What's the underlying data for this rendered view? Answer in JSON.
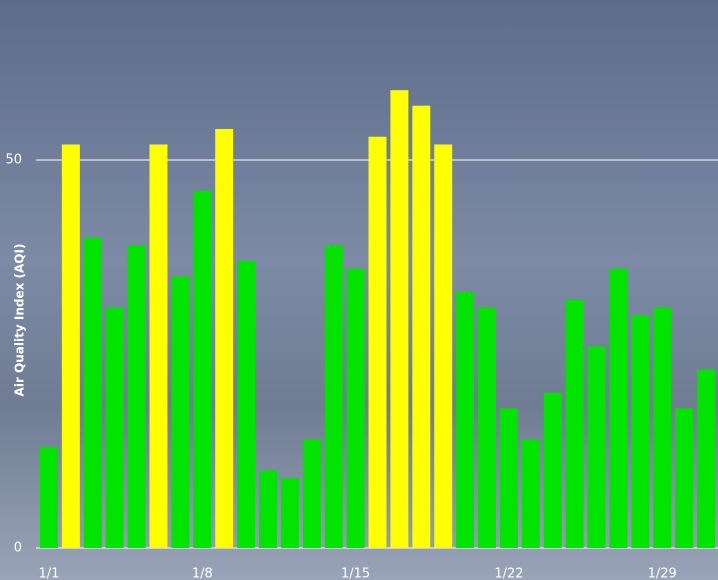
{
  "chart_data": {
    "type": "bar",
    "y_label": "Air Quality Index (AQI)",
    "categories": [
      "1/1",
      null,
      null,
      null,
      null,
      null,
      null,
      "1/8",
      null,
      null,
      null,
      null,
      null,
      null,
      "1/15",
      null,
      null,
      null,
      null,
      null,
      null,
      "1/22",
      null,
      null,
      null,
      null,
      null,
      null,
      "1/29",
      null,
      null
    ],
    "values": [
      13,
      52,
      40,
      31,
      39,
      52,
      35,
      46,
      54,
      37,
      10,
      9,
      14,
      39,
      36,
      53,
      59,
      57,
      52,
      33,
      31,
      18,
      14,
      20,
      32,
      26,
      36,
      30,
      31,
      18,
      23
    ],
    "colors": [
      "#00e400",
      "#ffff00",
      "#00e400",
      "#00e400",
      "#00e400",
      "#ffff00",
      "#00e400",
      "#00e400",
      "#ffff00",
      "#00e400",
      "#00e400",
      "#00e400",
      "#00e400",
      "#00e400",
      "#00e400",
      "#ffff00",
      "#ffff00",
      "#ffff00",
      "#ffff00",
      "#00e400",
      "#00e400",
      "#00e400",
      "#00e400",
      "#00e400",
      "#00e400",
      "#00e400",
      "#00e400",
      "#00e400",
      "#00e400",
      "#00e400",
      "#00e400"
    ],
    "ylim": [
      0,
      70
    ],
    "yticks": [
      0,
      50
    ],
    "grid": true
  }
}
